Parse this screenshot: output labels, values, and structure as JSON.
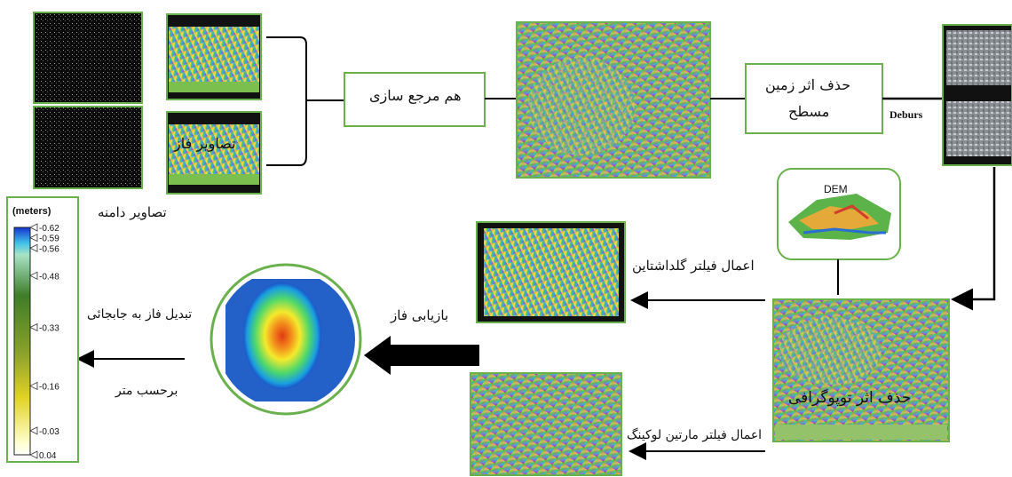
{
  "labels": {
    "amplitude_images": "تصاویر دامنه",
    "phase_images": "تصاویر فاز",
    "coregistration": "هم مرجع سازی",
    "flat_earth_line1": "حذف اثر زمین",
    "flat_earth_line2": "مسطح",
    "deburst": "Deburs",
    "dem": "DEM",
    "goldstein_filter": "اعمال فیلتر گلداشتاین",
    "topographic_removal": "حذف اثر توپوگرافی",
    "phase_unwrapping": "بازیابی فاز",
    "goldstein_martin_filter": "اعمال فیلتر مارتین لوکینگ",
    "phase_to_displacement_line1": "تبدیل فاز به جابجائی",
    "phase_to_displacement_line2": "برحسب متر"
  },
  "legend": {
    "title": "(meters)",
    "ticks": [
      "-0.62",
      "-0.59",
      "-0.56",
      "-0.48",
      "-0.33",
      "-0.16",
      "-0.03",
      "0.04"
    ]
  },
  "colors": {
    "box_border": "#6ab04c",
    "arrow": "#000000"
  }
}
